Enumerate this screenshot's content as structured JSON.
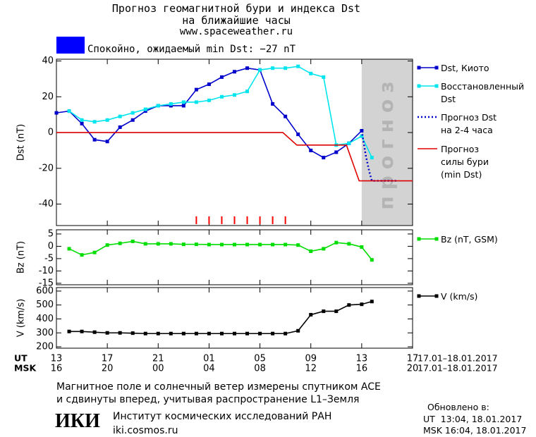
{
  "header": {
    "title": "Прогноз геомагнитной бури и индекса Dst",
    "subtitle": "на ближайшие часы",
    "url": "www.spaceweather.ru"
  },
  "status": {
    "color": "#0000ff",
    "text": "Спокойно, ожидаемый min Dst: −27 nT"
  },
  "chart_data": [
    {
      "type": "line",
      "ylabel": "Dst (nT)",
      "ylim": [
        -52,
        41
      ],
      "yticks": [
        -40,
        -20,
        0,
        20,
        40
      ],
      "shade": {
        "x": [
          24,
          28
        ],
        "label": "прогноз",
        "color": "#d3d3d3"
      },
      "event_marks": {
        "x": [
          11,
          12,
          13,
          14,
          15,
          16,
          17,
          18
        ],
        "color": "#ff0000"
      },
      "series": [
        {
          "name": "Dst, Киото",
          "color": "#0000cc",
          "marker": "square",
          "style": "solid",
          "x": [
            0,
            1,
            2,
            3,
            4,
            5,
            6,
            7,
            8,
            9,
            10,
            11,
            12,
            13,
            14,
            15,
            16,
            17,
            18,
            19,
            20,
            21,
            22,
            23,
            24
          ],
          "values": [
            11,
            12,
            5,
            -4,
            -5,
            3,
            7,
            12,
            15,
            15,
            15,
            24,
            27,
            31,
            34,
            36,
            35,
            16,
            9,
            -1,
            -10,
            -14,
            -11,
            -6,
            1
          ]
        },
        {
          "name": "Восстановленный\nDst",
          "color": "#00e5ee",
          "marker": "square",
          "style": "solid",
          "x": [
            1,
            2,
            3,
            4,
            5,
            6,
            7,
            8,
            9,
            10,
            11,
            12,
            13,
            14,
            15,
            16,
            17,
            18,
            19,
            20,
            21,
            22,
            23,
            24,
            24.8
          ],
          "values": [
            12,
            7,
            6,
            7,
            9,
            11,
            13,
            15,
            16,
            17,
            17,
            18,
            20,
            21,
            23,
            35,
            36,
            36,
            37,
            33,
            31,
            -7,
            -6,
            -2,
            -14
          ]
        },
        {
          "name": "Прогноз Dst\nна 2-4 часа",
          "color": "#0000cc",
          "marker": "none",
          "style": "dotted",
          "x": [
            24,
            24.3,
            24.6,
            24.8,
            26.8
          ],
          "values": [
            1,
            -12,
            -22,
            -27,
            -27
          ]
        },
        {
          "name": "Прогноз\nсилы бури\n(min Dst)",
          "color": "#dd0000",
          "marker": "none",
          "style": "solid",
          "x": [
            0,
            17.8,
            18.9,
            22.8,
            23.8,
            28
          ],
          "values": [
            0,
            0,
            -7,
            -7,
            -27,
            -27
          ]
        }
      ]
    },
    {
      "type": "line",
      "ylabel": "Bz (nT)",
      "ylim": [
        -15.6,
        6.7
      ],
      "yticks": [
        -15,
        -10,
        -5,
        0,
        5
      ],
      "series": [
        {
          "name": "Bz (nT, GSM)",
          "color": "#00dd00",
          "marker": "square",
          "style": "solid",
          "x": [
            1,
            2,
            3,
            4,
            5,
            6,
            7,
            8,
            9,
            10,
            11,
            12,
            13,
            14,
            15,
            16,
            17,
            18,
            19,
            20,
            21,
            22,
            23,
            24,
            24.8
          ],
          "values": [
            -1,
            -3.5,
            -2.5,
            0.5,
            1.2,
            2,
            1,
            1,
            1,
            0.8,
            0.8,
            0.7,
            0.7,
            0.7,
            0.7,
            0.7,
            0.7,
            0.7,
            0.5,
            -2,
            -1,
            1.5,
            1,
            -0.3,
            -5.5
          ]
        }
      ]
    },
    {
      "type": "line",
      "ylabel": "V (km/s)",
      "ylim": [
        190,
        625
      ],
      "yticks": [
        200,
        300,
        400,
        500,
        600
      ],
      "xlim": [
        0,
        28
      ],
      "xlabel": "UT",
      "xdate": "17.01–18.01.2017",
      "xticks": [
        {
          "value": 0,
          "label": "13"
        },
        {
          "value": 4,
          "label": "17"
        },
        {
          "value": 8,
          "label": "21"
        },
        {
          "value": 12,
          "label": "01"
        },
        {
          "value": 16,
          "label": "05"
        },
        {
          "value": 20,
          "label": "09"
        },
        {
          "value": 24,
          "label": "13"
        },
        {
          "value": 28,
          "label": "17"
        }
      ],
      "x2label": "MSK",
      "x2date": "17.01–18.01.2017",
      "x2ticks": [
        {
          "value": 0,
          "label": "16"
        },
        {
          "value": 4,
          "label": "20"
        },
        {
          "value": 8,
          "label": "00"
        },
        {
          "value": 12,
          "label": "04"
        },
        {
          "value": 16,
          "label": "08"
        },
        {
          "value": 20,
          "label": "12"
        },
        {
          "value": 24,
          "label": "16"
        },
        {
          "value": 28,
          "label": "20"
        }
      ],
      "series": [
        {
          "name": "V (km/s)",
          "color": "#000000",
          "marker": "square",
          "style": "solid",
          "x": [
            1,
            2,
            3,
            4,
            5,
            6,
            7,
            8,
            9,
            10,
            11,
            12,
            13,
            14,
            15,
            16,
            17,
            18,
            19,
            20,
            21,
            22,
            23,
            24,
            24.8
          ],
          "values": [
            310,
            310,
            305,
            300,
            300,
            298,
            295,
            295,
            295,
            295,
            295,
            295,
            295,
            295,
            295,
            295,
            295,
            295,
            315,
            430,
            455,
            455,
            500,
            505,
            525
          ]
        }
      ]
    }
  ],
  "footer": {
    "note": [
      "Магнитное поле и солнечный ветер измерены спутником ACE",
      "и сдвинуты вперед, учитывая распространение L1–Земля"
    ],
    "updated": {
      "title": "Обновлено в:",
      "ut": "UT  13:04, 18.01.2017",
      "msk": "MSK 16:04, 18.01.2017"
    },
    "logo": "ИКИ",
    "institute": "Институт космических исследований РАН",
    "site": "iki.cosmos.ru"
  }
}
